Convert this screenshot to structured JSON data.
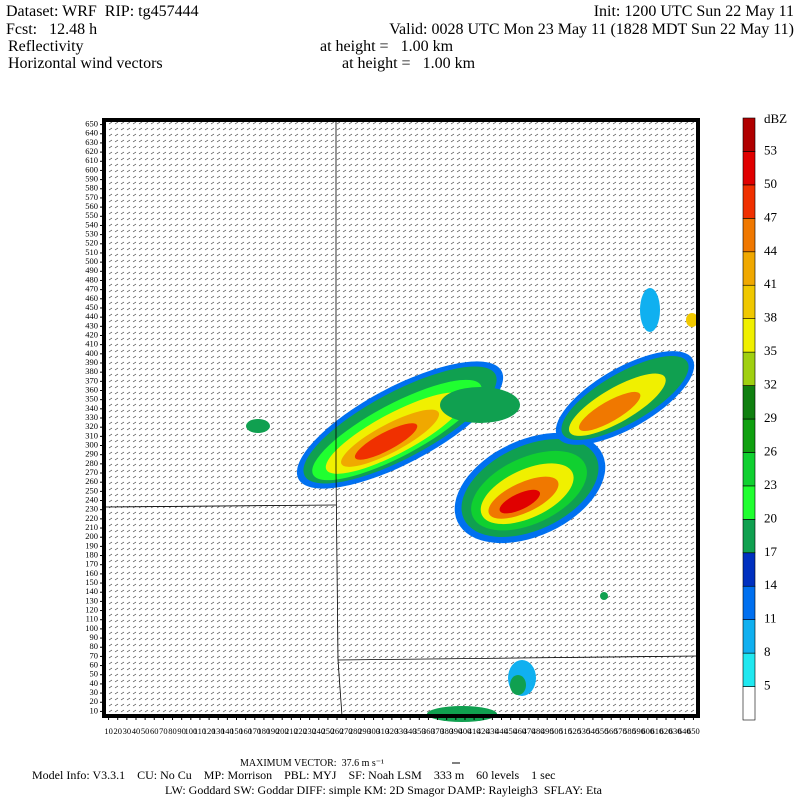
{
  "header": {
    "dataset": "Dataset: WRF  RIP: tg457444",
    "init": "Init: 1200 UTC Sun 22 May 11",
    "fcst": "Fcst:   12.48 h",
    "valid": "Valid: 0028 UTC Mon 23 May 11 (1828 MDT Sun 22 May 11)",
    "field1": "Reflectivity",
    "height1": "at height =   1.00 km",
    "field2": "Horizontal wind vectors",
    "height2": "at height =   1.00 km"
  },
  "plot": {
    "xlim": [
      5,
      655
    ],
    "ylim": [
      5,
      655
    ],
    "xticks": [
      10,
      20,
      30,
      40,
      50,
      60,
      70,
      80,
      90,
      100,
      110,
      120,
      130,
      140,
      150,
      160,
      170,
      180,
      190,
      200,
      210,
      220,
      230,
      240,
      250,
      260,
      270,
      280,
      290,
      300,
      310,
      320,
      330,
      340,
      350,
      360,
      370,
      380,
      390,
      400,
      410,
      420,
      430,
      440,
      450,
      460,
      470,
      480,
      490,
      500,
      510,
      520,
      530,
      540,
      550,
      560,
      570,
      580,
      590,
      600,
      610,
      620,
      630,
      640,
      650
    ],
    "yticks": [
      10,
      20,
      30,
      40,
      50,
      60,
      70,
      80,
      90,
      100,
      110,
      120,
      130,
      140,
      150,
      160,
      170,
      180,
      190,
      200,
      210,
      220,
      230,
      240,
      250,
      260,
      270,
      280,
      290,
      300,
      310,
      320,
      330,
      340,
      350,
      360,
      370,
      380,
      390,
      400,
      410,
      420,
      430,
      440,
      450,
      460,
      470,
      480,
      490,
      500,
      510,
      520,
      530,
      540,
      550,
      560,
      570,
      580,
      590,
      600,
      610,
      620,
      630,
      640,
      650
    ]
  },
  "colorbar": {
    "unit": "dBZ",
    "levels": [
      5,
      8,
      11,
      14,
      17,
      20,
      23,
      26,
      29,
      32,
      35,
      38,
      41,
      44,
      47,
      50,
      53
    ],
    "colors": [
      "#ffffff",
      "#20e8f0",
      "#10b0f0",
      "#0070f0",
      "#0030c0",
      "#10a050",
      "#20ff30",
      "#10d030",
      "#10a010",
      "#108010",
      "#a0d010",
      "#f0f000",
      "#f0c800",
      "#f0a800",
      "#f07800",
      "#f03000",
      "#e00000",
      "#b00000"
    ]
  },
  "footer": {
    "max_vector": "MAXIMUM VECTOR:  37.6 m s⁻¹",
    "model_info": "Model Info: V3.3.1    CU: No Cu    MP: Morrison    PBL: MYJ    SF: Noah LSM    333 m    60 levels    1 sec",
    "physics": "LW: Goddard SW: Goddar DIFF: simple KM: 2D Smagor DAMP: Rayleigh3  SFLAY: Eta"
  }
}
